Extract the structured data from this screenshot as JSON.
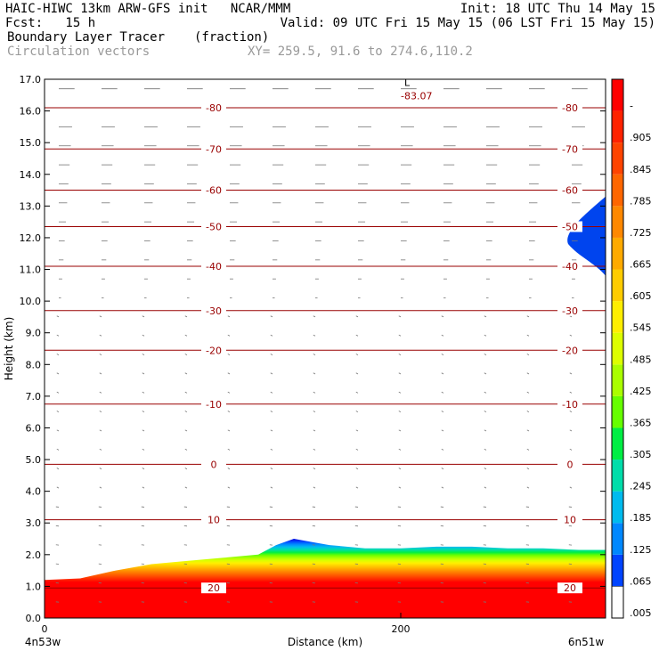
{
  "header": {
    "line1_left": "HAIC-HIWC 13km ARW-GFS init   NCAR/MMM",
    "line1_right": "Init: 18 UTC Thu 14 May 15",
    "line2_left": "Fcst:   15 h",
    "line2_right": "Valid: 09 UTC Fri 15 May 15 (06 LST Fri 15 May 15)",
    "field_name": "Boundary Layer Tracer",
    "field_units": "(fraction)",
    "overlay_name": "Circulation vectors",
    "xy_readout": "XY= 259.5, 91.6 to 274.6,110.2"
  },
  "chart_data": {
    "type": "heatmap",
    "xlabel": "Distance (km)",
    "ylabel": "Height (km)",
    "xlim": [
      0,
      315
    ],
    "ylim": [
      0,
      17
    ],
    "x_ticks": [
      {
        "v": 0,
        "label": "0"
      },
      {
        "v": 200,
        "label": "200"
      }
    ],
    "x_end_labels": {
      "left": "4n53w",
      "right": "6n51w"
    },
    "y_ticks": [
      "0.0",
      "1.0",
      "2.0",
      "3.0",
      "4.0",
      "5.0",
      "6.0",
      "7.0",
      "8.0",
      "9.0",
      "10.0",
      "11.0",
      "12.0",
      "13.0",
      "14.0",
      "15.0",
      "16.0",
      "17.0"
    ],
    "colorbar_labels": [
      ".005",
      ".065",
      ".125",
      ".185",
      ".245",
      ".305",
      ".365",
      ".425",
      ".485",
      ".545",
      ".605",
      ".665",
      ".725",
      ".785",
      ".845",
      ".905",
      "-"
    ],
    "colorbar_colors": [
      "#ff0000",
      "#ff2200",
      "#ff4400",
      "#ff6600",
      "#ff8800",
      "#ffaa00",
      "#ffcc00",
      "#ffee00",
      "#ddff00",
      "#aaff00",
      "#66ff00",
      "#00ee44",
      "#00ddaa",
      "#00bbee",
      "#0088ff",
      "#0044ff",
      "#0000dd"
    ],
    "boundary_layer_top_km": {
      "x": [
        0,
        20,
        40,
        60,
        80,
        100,
        120,
        130,
        140,
        150,
        160,
        180,
        200,
        220,
        240,
        260,
        280,
        300,
        315
      ],
      "y": [
        1.2,
        1.25,
        1.5,
        1.7,
        1.8,
        1.9,
        2.0,
        2.3,
        2.5,
        2.4,
        2.3,
        2.2,
        2.2,
        2.25,
        2.25,
        2.2,
        2.2,
        2.15,
        2.15
      ]
    },
    "temperature_contours": [
      {
        "label": "20",
        "height_km": 0.95
      },
      {
        "label": "10",
        "height_km": 3.1
      },
      {
        "label": "0",
        "height_km": 4.85
      },
      {
        "label": "-10",
        "height_km": 6.75
      },
      {
        "label": "-20",
        "height_km": 8.45
      },
      {
        "label": "-30",
        "height_km": 9.7
      },
      {
        "label": "-40",
        "height_km": 11.1
      },
      {
        "label": "-50",
        "height_km": 12.35
      },
      {
        "label": "-60",
        "height_km": 13.5
      },
      {
        "label": "-70",
        "height_km": 14.8
      },
      {
        "label": "-80",
        "height_km": 16.1
      }
    ],
    "low_marker": {
      "label": "L",
      "value": "-83.07",
      "x_km": 202,
      "height_km": 16.7
    },
    "contour_color": "#990000"
  }
}
